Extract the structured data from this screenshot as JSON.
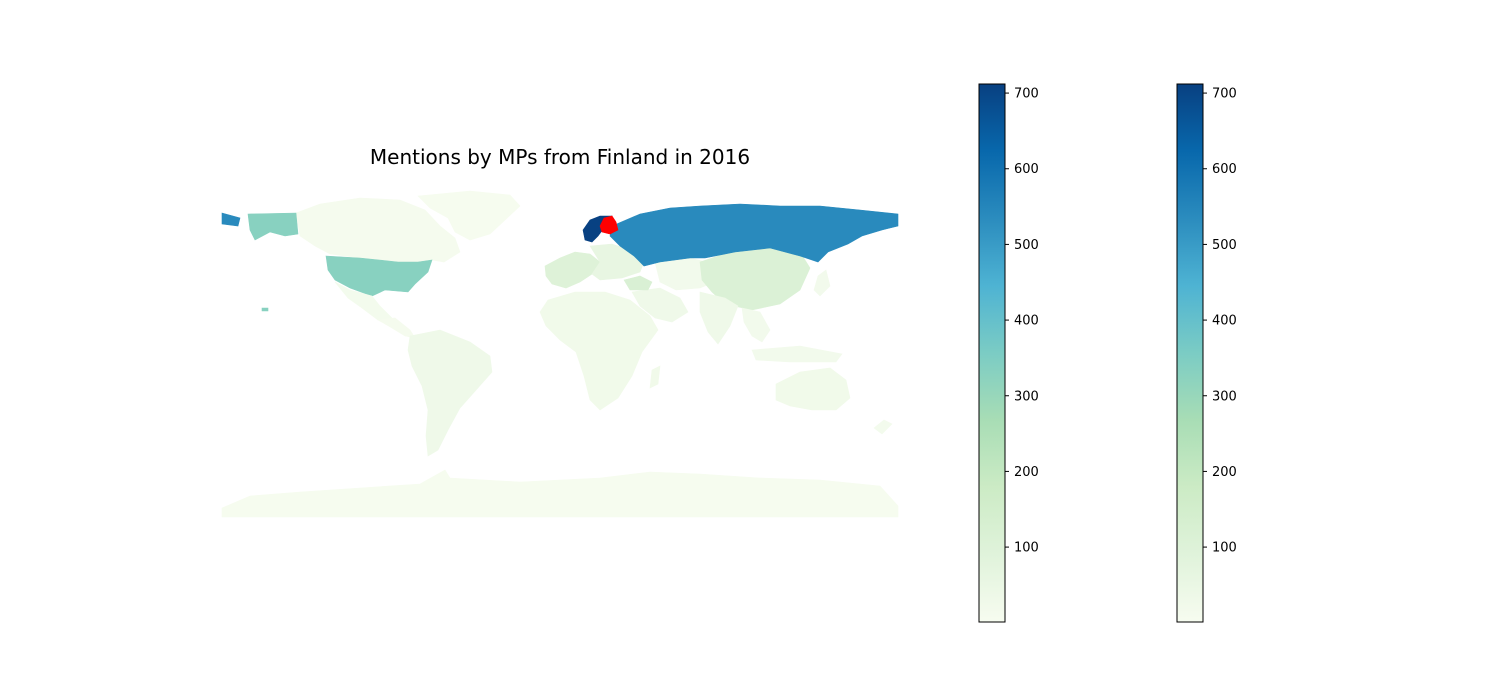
{
  "title": "Mentions by MPs from Finland in 2016",
  "map": {
    "colormap": "GnBu",
    "highlight_color": "#ff0000",
    "highlight_country": "Finland",
    "regions": [
      {
        "name": "Sweden",
        "value": 710
      },
      {
        "name": "Russia",
        "value": 540
      },
      {
        "name": "Finland",
        "value": null,
        "highlighted": true
      },
      {
        "name": "United States",
        "value": 330
      },
      {
        "name": "Canada",
        "value": 10
      },
      {
        "name": "Greenland",
        "value": 5
      },
      {
        "name": "Mexico",
        "value": 15
      },
      {
        "name": "Central America",
        "value": 10
      },
      {
        "name": "South America",
        "value": 30
      },
      {
        "name": "Western Europe",
        "value": 100
      },
      {
        "name": "Europe (other)",
        "value": 60
      },
      {
        "name": "Africa",
        "value": 25
      },
      {
        "name": "Middle East",
        "value": 30
      },
      {
        "name": "Turkey",
        "value": 120
      },
      {
        "name": "Central Asia",
        "value": 20
      },
      {
        "name": "China",
        "value": 110
      },
      {
        "name": "India",
        "value": 30
      },
      {
        "name": "Southeast Asia",
        "value": 20
      },
      {
        "name": "Japan",
        "value": 20
      },
      {
        "name": "Australia",
        "value": 25
      },
      {
        "name": "New Zealand",
        "value": 15
      },
      {
        "name": "Antarctica",
        "value": 5
      }
    ]
  },
  "colorbars": [
    {
      "min": 1,
      "max": 712,
      "ticks": [
        100,
        200,
        300,
        400,
        500,
        600,
        700
      ],
      "tick_labels": [
        "100",
        "200",
        "300",
        "400",
        "500",
        "600",
        "700"
      ]
    },
    {
      "min": 1,
      "max": 712,
      "ticks": [
        100,
        200,
        300,
        400,
        500,
        600,
        700
      ],
      "tick_labels": [
        "100",
        "200",
        "300",
        "400",
        "500",
        "600",
        "700"
      ]
    }
  ]
}
